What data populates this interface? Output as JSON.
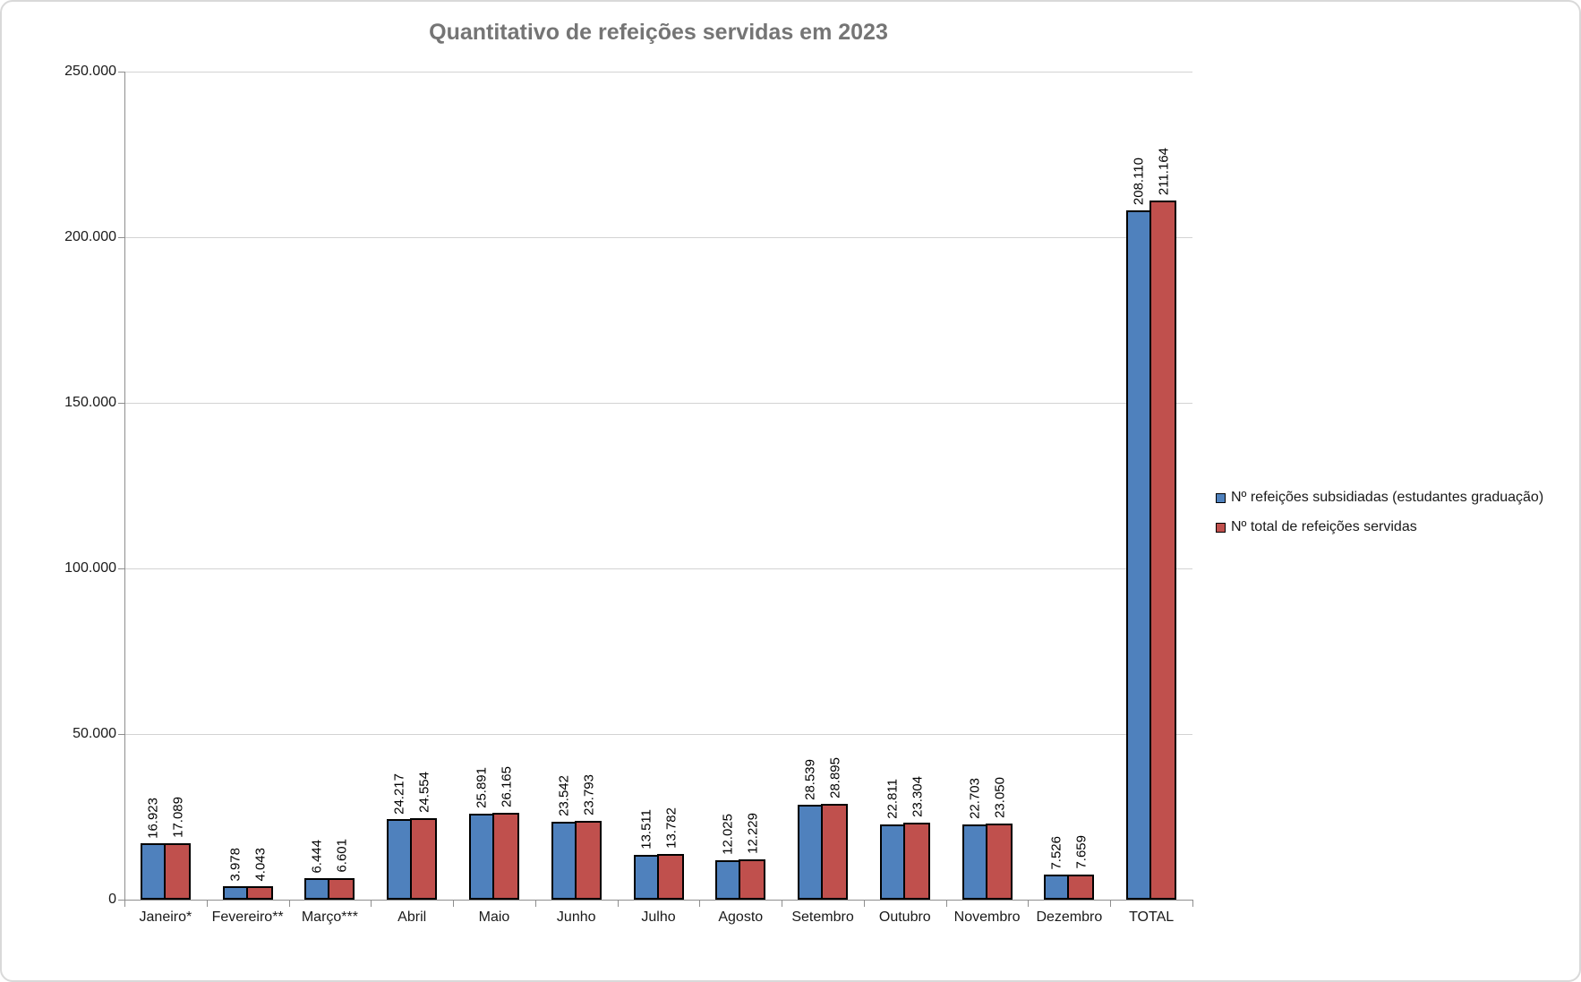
{
  "title": "Quantitativo de refeições servidas em 2023",
  "legend": {
    "items": [
      {
        "label": "Nº refeições subsidiadas (estudantes graduação)",
        "color": "#4f81bd"
      },
      {
        "label": "Nº total de refeições servidas",
        "color": "#c0504d"
      }
    ]
  },
  "chart_data": {
    "type": "bar",
    "title": "Quantitativo de refeições servidas em 2023",
    "categories": [
      "Janeiro*",
      "Fevereiro**",
      "Março***",
      "Abril",
      "Maio",
      "Junho",
      "Julho",
      "Agosto",
      "Setembro",
      "Outubro",
      "Novembro",
      "Dezembro",
      "TOTAL"
    ],
    "series": [
      {
        "name": "Nº refeições subsidiadas (estudantes graduação)",
        "color": "#4f81bd",
        "values": [
          16923,
          3978,
          6444,
          24217,
          25891,
          23542,
          13511,
          12025,
          28539,
          22811,
          22703,
          7526,
          208110
        ],
        "labels": [
          "16.923",
          "3.978",
          "6.444",
          "24.217",
          "25.891",
          "23.542",
          "13.511",
          "12.025",
          "28.539",
          "22.811",
          "22.703",
          "7.526",
          "208.110"
        ]
      },
      {
        "name": "Nº total de refeições servidas",
        "color": "#c0504d",
        "values": [
          17089,
          4043,
          6601,
          24554,
          26165,
          23793,
          13782,
          12229,
          28895,
          23304,
          23050,
          7659,
          211164
        ],
        "labels": [
          "17.089",
          "4.043",
          "6.601",
          "24.554",
          "26.165",
          "23.793",
          "13.782",
          "12.229",
          "28.895",
          "23.304",
          "23.050",
          "7.659",
          "211.164"
        ]
      }
    ],
    "xlabel": "",
    "ylabel": "",
    "ylim": [
      0,
      250000
    ],
    "y_tick_step": 50000,
    "y_tick_labels": [
      "0",
      "50.000",
      "100.000",
      "150.000",
      "200.000",
      "250.000"
    ],
    "grid": true,
    "legend_position": "right",
    "data_label_rotation": -90
  },
  "colors": {
    "series1": "#4f81bd",
    "series2": "#c0504d",
    "bar_border": "#000000",
    "gridline": "#d3d3d3",
    "axis": "#8e8e8e",
    "title_text": "#757575",
    "axis_text": "#1a1a1a",
    "frame_border": "#d9d9d9"
  }
}
